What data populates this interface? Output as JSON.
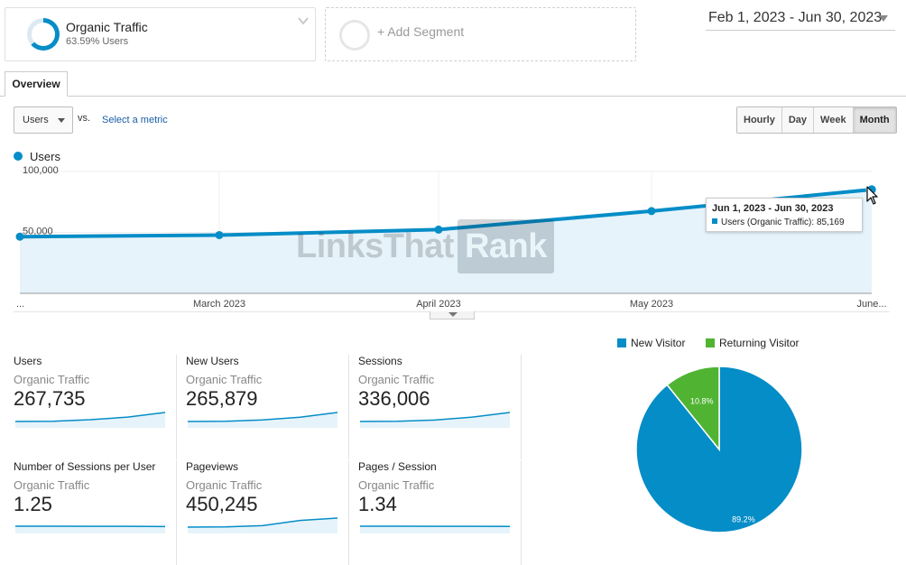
{
  "segments": {
    "primary": {
      "name": "Organic Traffic",
      "subtitle": "63.59% Users",
      "users_fraction": 0.6359
    },
    "add_label": "+ Add Segment"
  },
  "date_range": {
    "label": "Feb 1, 2023 - Jun 30, 2023"
  },
  "tabs": [
    {
      "label": "Overview",
      "active": true
    }
  ],
  "metric_selector": {
    "value": "Users",
    "vs_label": "vs.",
    "select_metric_label": "Select a metric"
  },
  "time_buttons": [
    {
      "label": "Hourly",
      "active": false
    },
    {
      "label": "Day",
      "active": false
    },
    {
      "label": "Week",
      "active": false
    },
    {
      "label": "Month",
      "active": true
    }
  ],
  "chart_legend": {
    "label": "Users"
  },
  "tooltip": {
    "title": "Jun 1, 2023 - Jun 30, 2023",
    "series_line": "Users (Organic Traffic): 85,169"
  },
  "watermark": {
    "part1": "LinksThat",
    "part2": "Rank"
  },
  "colors": {
    "accent": "#058dc7",
    "accent_fill": "#e6f3fa",
    "returning": "#50b432",
    "link": "#1a5da6"
  },
  "chart_data": [
    {
      "type": "area",
      "series": [
        {
          "name": "Users",
          "values": [
            46500,
            47800,
            52300,
            67500,
            85169
          ]
        }
      ],
      "x": [
        "2023-02",
        "2023-03",
        "2023-04",
        "2023-05",
        "2023-06"
      ],
      "x_tick_labels": [
        "...",
        "March 2023",
        "April 2023",
        "May 2023",
        "June..."
      ],
      "y_tick_labels": [
        "100,000",
        "50,000"
      ],
      "y_ticks": [
        100000,
        50000
      ],
      "ylim": [
        0,
        100000
      ],
      "grid": true
    },
    {
      "type": "pie",
      "legend": [
        {
          "label": "New Visitor"
        },
        {
          "label": "Returning Visitor"
        }
      ],
      "slices": [
        {
          "name": "New Visitor",
          "value": 89.2,
          "label": "89.2%",
          "color": "#058dc7"
        },
        {
          "name": "Returning Visitor",
          "value": 10.8,
          "label": "10.8%",
          "color": "#50b432"
        }
      ],
      "legend_position": "top"
    }
  ],
  "scorecards": [
    {
      "metric": "Users",
      "segment": "Organic Traffic",
      "value": "267,735",
      "sparkline": [
        44,
        45,
        52,
        64,
        85
      ]
    },
    {
      "metric": "New Users",
      "segment": "Organic Traffic",
      "value": "265,879",
      "sparkline": [
        44,
        45,
        51,
        63,
        84
      ]
    },
    {
      "metric": "Sessions",
      "segment": "Organic Traffic",
      "value": "336,006",
      "sparkline": [
        56,
        57,
        64,
        80,
        105
      ]
    },
    {
      "metric": "Number of Sessions per User",
      "segment": "Organic Traffic",
      "value": "1.25",
      "sparkline": [
        1.26,
        1.26,
        1.25,
        1.25,
        1.24
      ]
    },
    {
      "metric": "Pageviews",
      "segment": "Organic Traffic",
      "value": "450,245",
      "sparkline": [
        76,
        77,
        82,
        104,
        114
      ]
    },
    {
      "metric": "Pages / Session",
      "segment": "Organic Traffic",
      "value": "1.34",
      "sparkline": [
        1.35,
        1.35,
        1.34,
        1.34,
        1.33
      ]
    }
  ]
}
